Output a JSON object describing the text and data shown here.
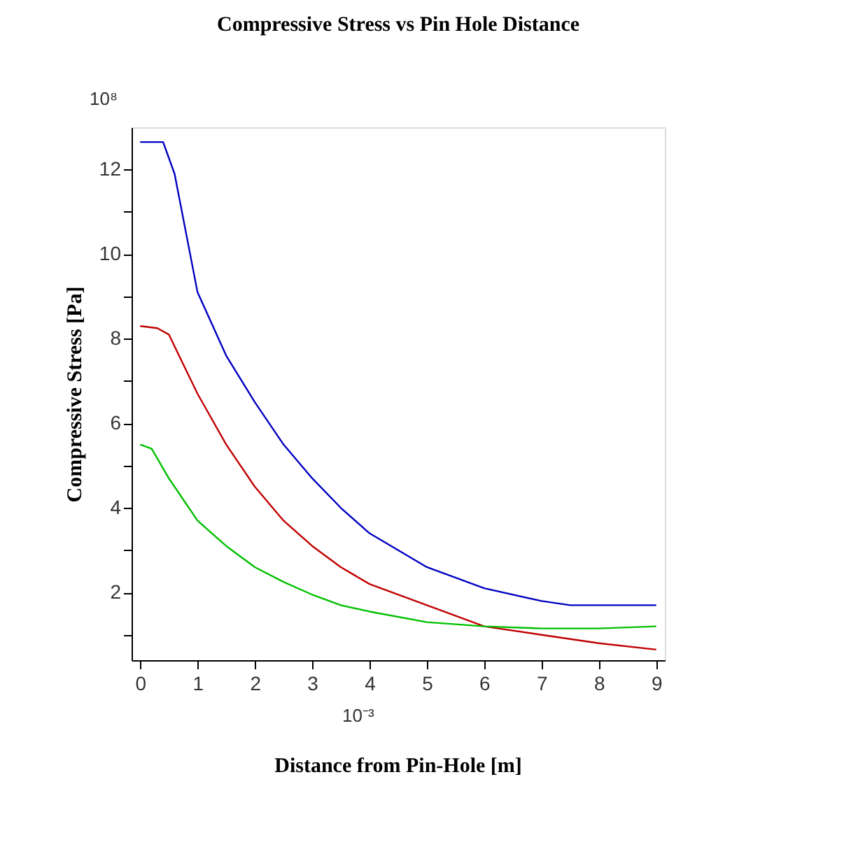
{
  "chart_data": {
    "type": "line",
    "title": "Compressive Stress vs Pin Hole Distance",
    "xlabel": "Distance from Pin-Hole [m]",
    "ylabel": "Compressive Stress [Pa]",
    "annotations": [
      "10⁸",
      "10⁻³"
    ],
    "series": [
      {
        "color": "#0000c0",
        "x": [
          0,
          0.4,
          0.6,
          1,
          1.5,
          2,
          2.5,
          3,
          3.5,
          4,
          4.5,
          5,
          6,
          7,
          7.5,
          8,
          9
        ],
        "values": [
          12.65,
          12.65,
          11.9,
          9.1,
          7.6,
          6.5,
          5.5,
          4.7,
          4.0,
          3.4,
          3.0,
          2.6,
          2.1,
          1.8,
          1.7,
          1.7,
          1.7
        ]
      },
      {
        "color": "#c00000",
        "x": [
          0,
          0.3,
          0.5,
          1,
          1.5,
          2,
          2.5,
          3,
          3.5,
          4,
          5,
          6,
          7,
          8,
          9
        ],
        "values": [
          8.3,
          8.25,
          8.1,
          6.7,
          5.5,
          4.5,
          3.7,
          3.1,
          2.6,
          2.2,
          1.7,
          1.2,
          1.0,
          0.8,
          0.65
        ]
      },
      {
        "color": "#00c000",
        "x": [
          0,
          0.2,
          0.5,
          1,
          1.5,
          2,
          2.5,
          3,
          3.5,
          4,
          5,
          6,
          7,
          8,
          9
        ],
        "values": [
          5.5,
          5.4,
          4.7,
          3.7,
          3.1,
          2.6,
          2.25,
          1.95,
          1.7,
          1.55,
          1.3,
          1.2,
          1.15,
          1.15,
          1.2
        ]
      }
    ],
    "xlim": [
      -0.15,
      9.15
    ],
    "ylim": [
      0.4,
      13
    ],
    "xticks": [
      0,
      1,
      2,
      3,
      4,
      5,
      6,
      7,
      8,
      9
    ],
    "yticks": [
      {
        "value": 1,
        "label": null
      },
      2,
      {
        "value": 3,
        "label": null
      },
      4,
      {
        "value": 5,
        "label": null
      },
      6,
      {
        "value": 7,
        "label": null
      },
      8,
      {
        "value": 9,
        "label": null
      },
      10,
      {
        "value": 11,
        "label": null
      },
      12
    ],
    "grid": false,
    "legend": false,
    "line_style": "solid"
  }
}
